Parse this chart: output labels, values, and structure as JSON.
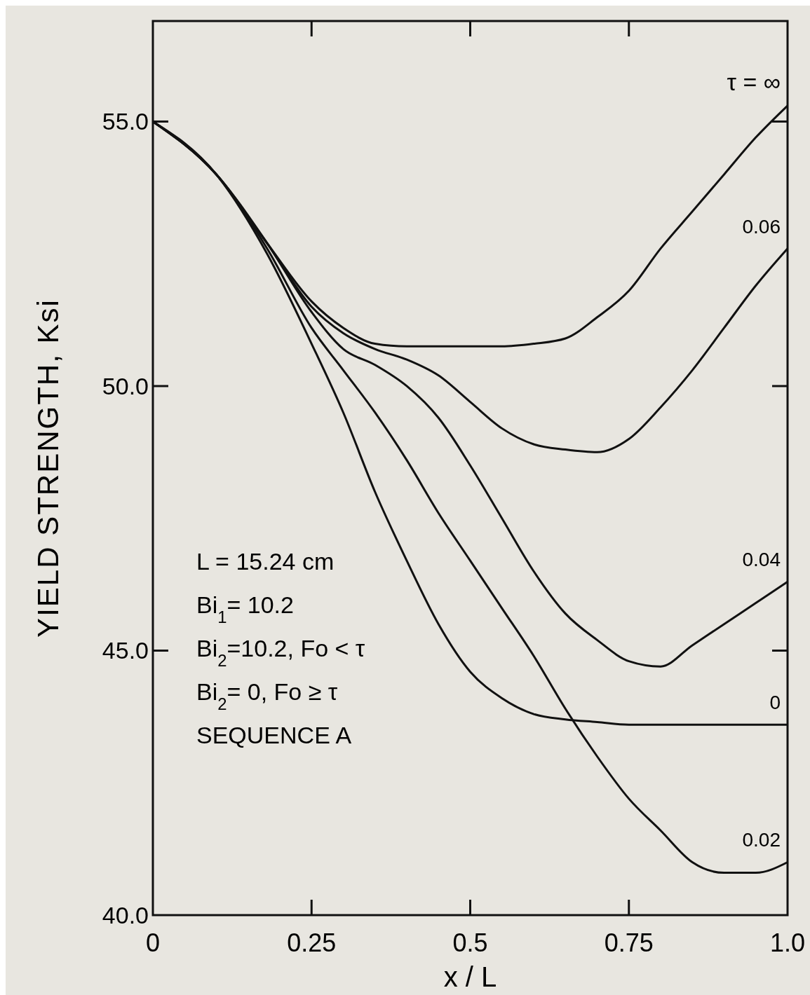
{
  "chart_data": {
    "type": "line",
    "xlabel": "x / L",
    "ylabel": "YIELD STRENGTH, Ksi",
    "xlim": [
      0,
      1.0
    ],
    "ylim": [
      40,
      56.9
    ],
    "xticks": [
      0,
      0.25,
      0.5,
      0.75,
      {
        "value": 1.0,
        "label": "1.0"
      }
    ],
    "yticks": [
      {
        "value": 40,
        "label": "40.0"
      },
      {
        "value": 45,
        "label": "45.0"
      },
      {
        "value": 50,
        "label": "50.0"
      },
      {
        "value": 55,
        "label": "55.0"
      }
    ],
    "grid": false,
    "line_style": "solid",
    "marker": "none",
    "x": [
      0,
      0.1,
      0.18,
      0.25,
      0.3,
      0.35,
      0.4,
      0.45,
      0.5,
      0.55,
      0.6,
      0.65,
      0.7,
      0.75,
      0.8,
      0.85,
      0.9,
      0.95,
      1.0
    ],
    "series": [
      {
        "name": "τ = ∞",
        "color": "#111111",
        "values": [
          55.0,
          54.0,
          52.7,
          51.6,
          51.1,
          50.8,
          50.75,
          50.75,
          50.75,
          50.75,
          50.8,
          50.9,
          51.3,
          51.8,
          52.6,
          53.3,
          54.0,
          54.7,
          55.3
        ]
      },
      {
        "name": "0.06",
        "color": "#111111",
        "values": [
          55.0,
          54.0,
          52.7,
          51.5,
          51.0,
          50.7,
          50.5,
          50.2,
          49.7,
          49.2,
          48.9,
          48.8,
          48.75,
          49.0,
          49.6,
          50.3,
          51.1,
          51.9,
          52.6
        ]
      },
      {
        "name": "0.04",
        "color": "#111111",
        "values": [
          55.0,
          54.0,
          52.7,
          51.4,
          50.7,
          50.4,
          50.0,
          49.4,
          48.5,
          47.5,
          46.5,
          45.7,
          45.2,
          44.8,
          44.7,
          45.1,
          45.5,
          45.9,
          46.3
        ]
      },
      {
        "name": "0",
        "color": "#111111",
        "values": [
          55.0,
          54.0,
          52.5,
          50.8,
          49.5,
          48.0,
          46.7,
          45.5,
          44.6,
          44.1,
          43.8,
          43.7,
          43.65,
          43.6,
          43.6,
          43.6,
          43.6,
          43.6,
          43.6
        ]
      },
      {
        "name": "0.02",
        "color": "#111111",
        "values": [
          55.0,
          54.0,
          52.6,
          51.1,
          50.3,
          49.5,
          48.6,
          47.6,
          46.7,
          45.8,
          44.9,
          43.9,
          43.0,
          42.2,
          41.6,
          41.0,
          40.8,
          40.8,
          41.0
        ]
      }
    ],
    "annotations": [
      "L = 15.24 cm",
      "Bi$_{1}$= 10.2",
      "Bi$_{2}$=10.2, Fo < τ",
      "Bi$_{2}$= 0, Fo ≥ τ",
      "SEQUENCE A"
    ]
  }
}
